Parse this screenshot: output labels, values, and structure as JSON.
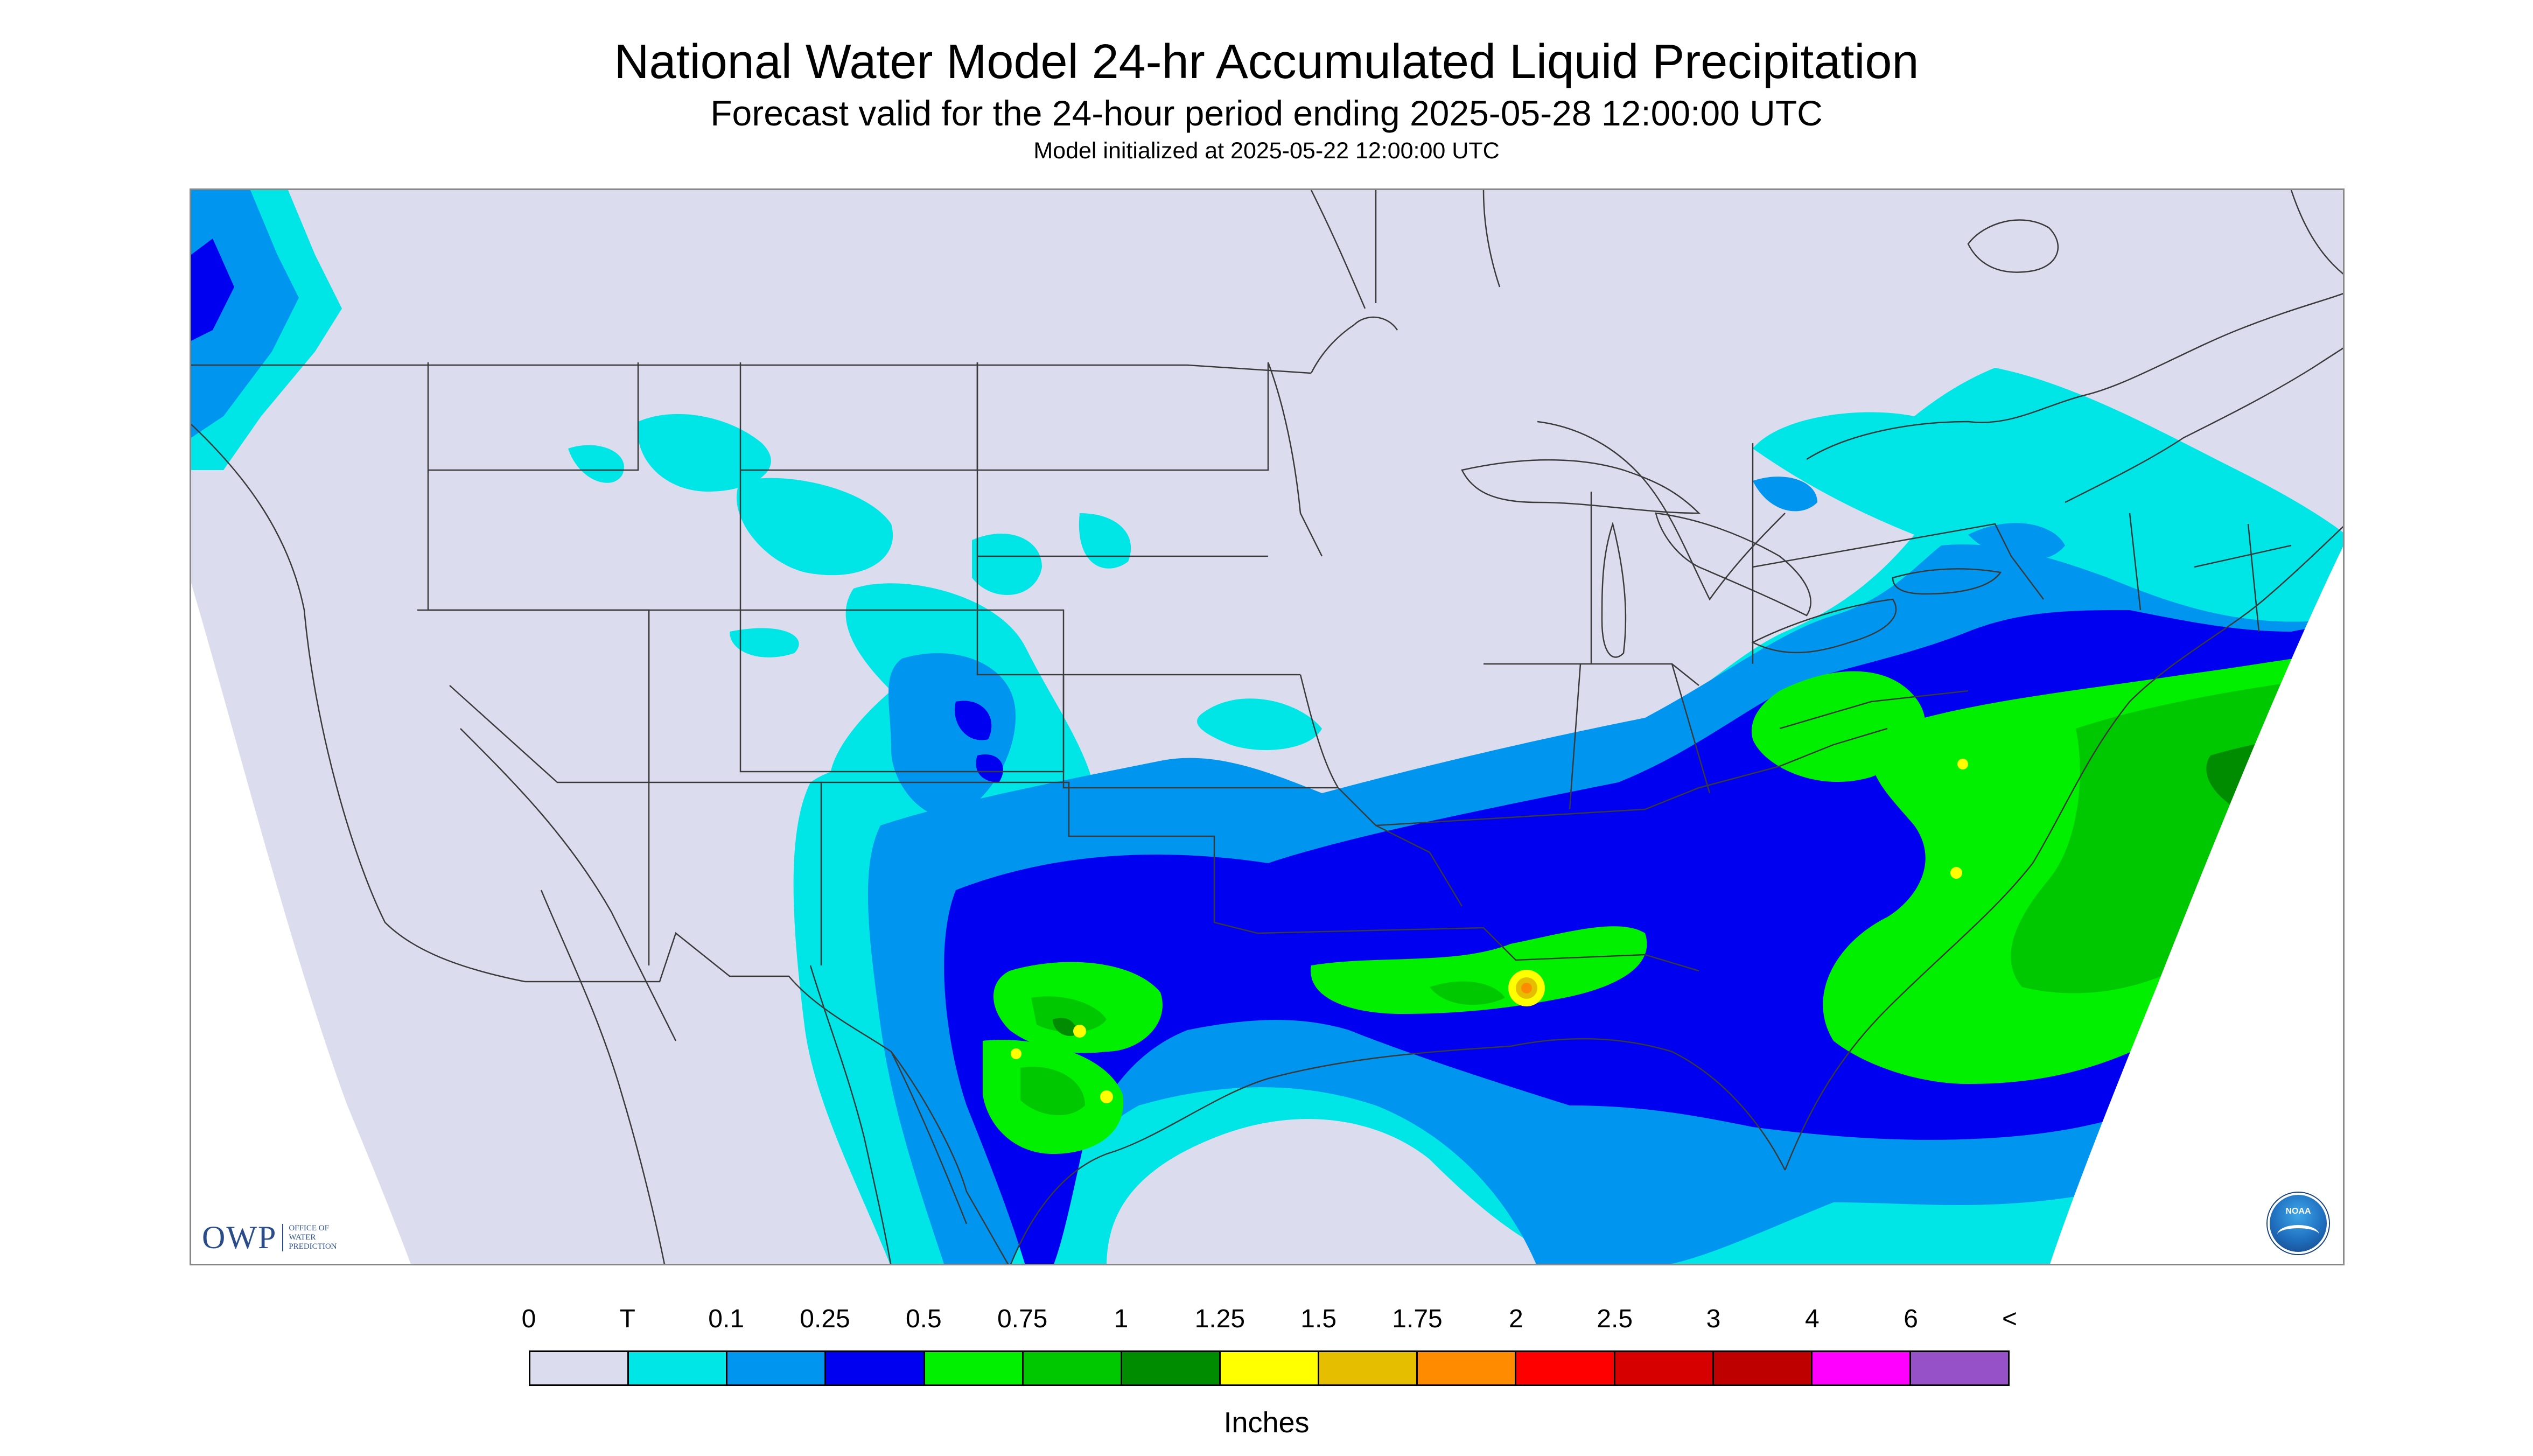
{
  "title": "National Water Model 24-hr Accumulated Liquid Precipitation",
  "subtitle": "Forecast valid for the 24-hour period ending 2025-05-28 12:00:00 UTC",
  "init_text": "Model initialized at 2025-05-22 12:00:00 UTC",
  "logos": {
    "owp_big": "OWP",
    "owp_small": [
      "OFFICE OF",
      "WATER",
      "PREDICTION"
    ],
    "noaa": "NOAA"
  },
  "legend": {
    "labels": [
      "0",
      "T",
      "0.1",
      "0.25",
      "0.5",
      "0.75",
      "1",
      "1.25",
      "1.5",
      "1.75",
      "2",
      "2.5",
      "3",
      "4",
      "6",
      "<"
    ],
    "colors": [
      "#dcdcef",
      "#00e6e6",
      "#0096f0",
      "#0000f0",
      "#00f000",
      "#00c800",
      "#008c00",
      "#ffff00",
      "#e6be00",
      "#ff8c00",
      "#ff0000",
      "#d70000",
      "#be0000",
      "#ff00ff",
      "#9650c8"
    ],
    "units": "Inches"
  },
  "map": {
    "background_color": "#dcdcef",
    "outside_color": "#ffffff",
    "boundary_color": "#3a3a3a"
  }
}
